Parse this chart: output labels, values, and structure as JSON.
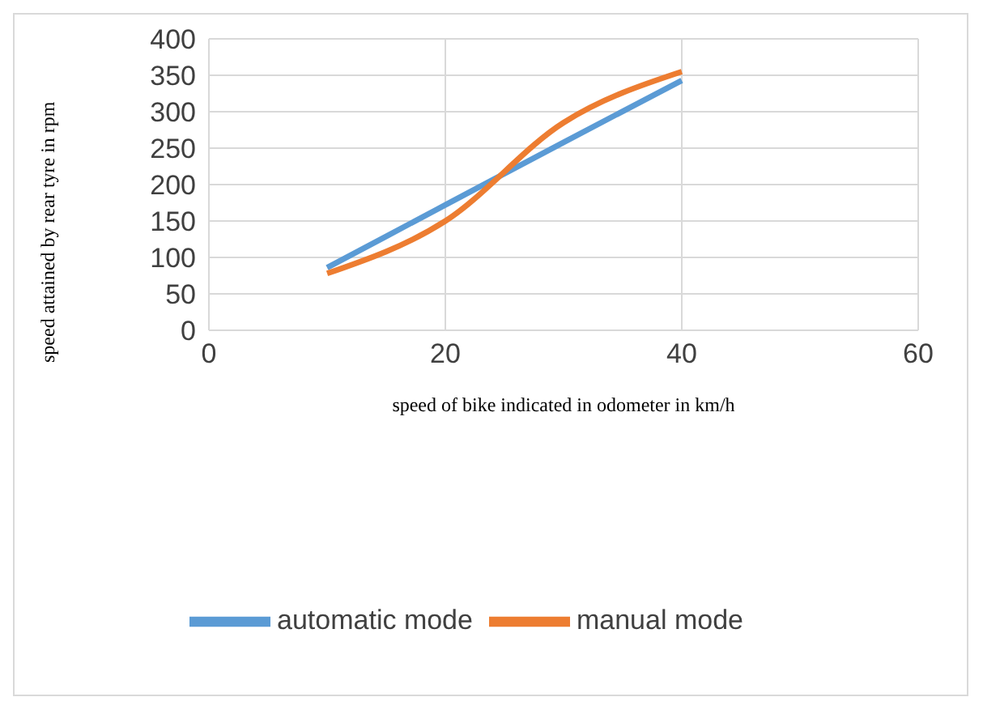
{
  "chart_data": {
    "type": "line",
    "xlabel": "speed of bike indicated in odometer in km/h",
    "ylabel": "speed attained by  rear tyre in rpm",
    "x": [
      10,
      20,
      30,
      40
    ],
    "series": [
      {
        "name": "automatic mode",
        "color": "#5b9bd5",
        "values": [
          86,
          172,
          258,
          343
        ]
      },
      {
        "name": "manual mode",
        "color": "#ed7d31",
        "values": [
          78,
          150,
          285,
          355
        ]
      }
    ],
    "xlim": [
      0,
      60
    ],
    "xticks": [
      0,
      20,
      40,
      60
    ],
    "ylim": [
      0,
      400
    ],
    "yticks": [
      0,
      50,
      100,
      150,
      200,
      250,
      300,
      350,
      400
    ],
    "grid": true,
    "legend": "bottom",
    "marker": "none",
    "line_style": "solid"
  }
}
